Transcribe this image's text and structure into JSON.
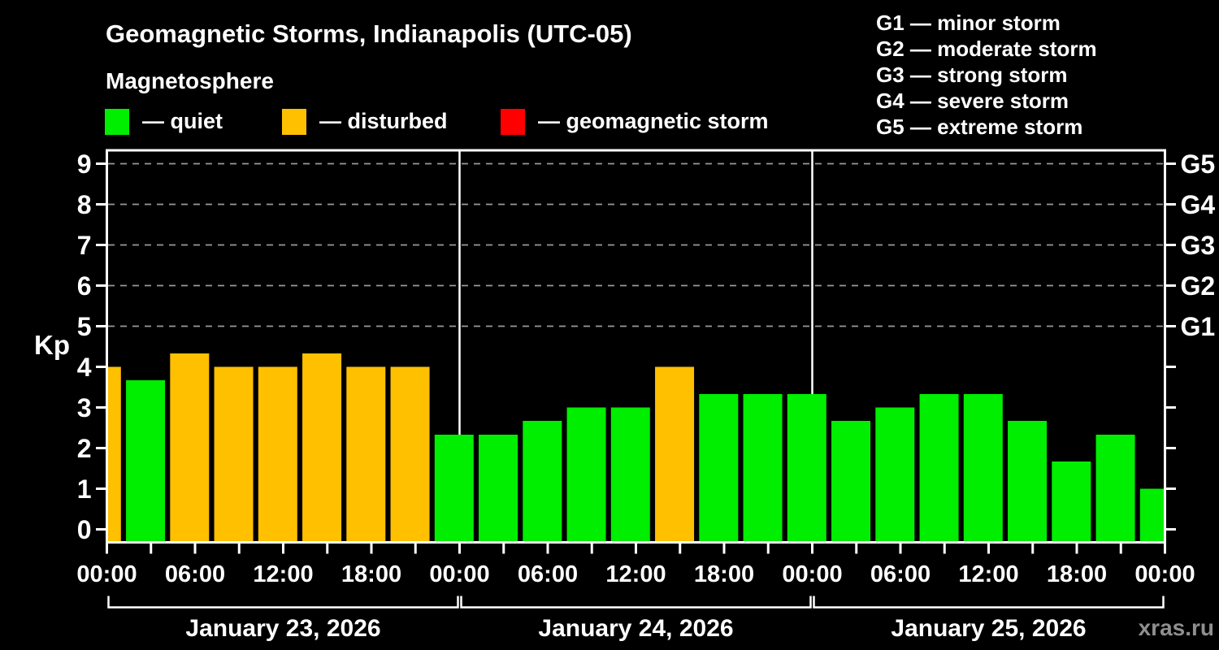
{
  "header": {
    "title": "Geomagnetic Storms, Indianapolis (UTC-05)",
    "subtitle": "Magnetosphere"
  },
  "legend": {
    "items": [
      {
        "label": "— quiet",
        "color_key": "quiet"
      },
      {
        "label": "— disturbed",
        "color_key": "disturbed"
      },
      {
        "label": "— geomagnetic storm",
        "color_key": "storm"
      }
    ]
  },
  "g_legend": {
    "items": [
      "G1 — minor storm",
      "G2 — moderate storm",
      "G3 — strong storm",
      "G4 — severe storm",
      "G5 — extreme storm"
    ]
  },
  "watermark": "xras.ru",
  "chart_data": {
    "type": "bar",
    "title": "Geomagnetic Storms, Indianapolis (UTC-05)",
    "subtitle": "Magnetosphere",
    "ylabel": "Kp",
    "ylim": [
      0,
      9
    ],
    "y_ticks": [
      0,
      1,
      2,
      3,
      4,
      5,
      6,
      7,
      8,
      9
    ],
    "grid": "dashed horizontal gridlines at Kp 5-9 (G1-G5 levels)",
    "legend_position": "top",
    "right_axis": {
      "ticks_kp": [
        5,
        6,
        7,
        8,
        9
      ],
      "labels": [
        "G1",
        "G2",
        "G3",
        "G4",
        "G5"
      ]
    },
    "x_axis": {
      "span_hours": 72,
      "tick_step_hours": 3,
      "label_step_hours": 6,
      "labels": [
        "00:00",
        "06:00",
        "12:00",
        "18:00",
        "00:00",
        "06:00",
        "12:00",
        "18:00",
        "00:00",
        "06:00",
        "12:00",
        "18:00",
        "00:00"
      ]
    },
    "days": [
      "January 23, 2026",
      "January 24, 2026",
      "January 25, 2026"
    ],
    "colors": {
      "quiet": "#00EE00",
      "disturbed": "#FFC000",
      "storm": "#FF0000",
      "grid": "#999999",
      "axis": "#FFFFFF"
    },
    "bars": {
      "step_hours": 3,
      "values": [
        4.0,
        3.67,
        4.33,
        4.0,
        4.0,
        4.33,
        4.0,
        4.0,
        2.33,
        2.33,
        2.67,
        3.0,
        3.0,
        4.0,
        3.33,
        3.33,
        3.33,
        2.67,
        3.0,
        3.33,
        3.33,
        2.67,
        1.67,
        2.33,
        1.0
      ],
      "statuses": [
        "disturbed",
        "quiet",
        "disturbed",
        "disturbed",
        "disturbed",
        "disturbed",
        "disturbed",
        "disturbed",
        "quiet",
        "quiet",
        "quiet",
        "quiet",
        "quiet",
        "disturbed",
        "quiet",
        "quiet",
        "quiet",
        "quiet",
        "quiet",
        "quiet",
        "quiet",
        "quiet",
        "quiet",
        "quiet",
        "quiet"
      ]
    }
  }
}
